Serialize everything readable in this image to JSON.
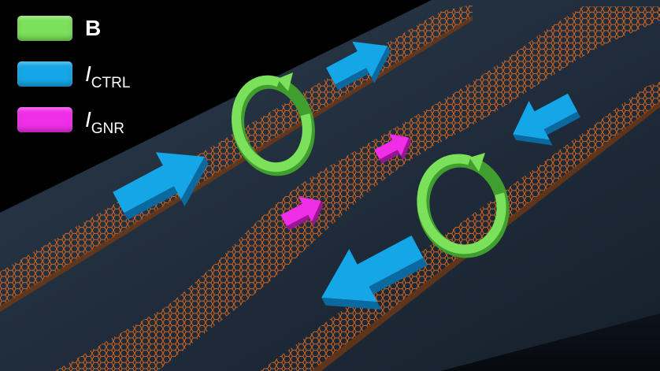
{
  "legend": {
    "items": [
      {
        "id": "b",
        "symbol": "B",
        "subscript": "",
        "color": "#7be05a"
      },
      {
        "id": "ictrl",
        "symbol": "I",
        "subscript": "CTRL",
        "color": "#14a6e6"
      },
      {
        "id": "ignr",
        "symbol": "I",
        "subscript": "GNR",
        "color": "#f02ee8"
      }
    ]
  },
  "colors": {
    "background": "#000000",
    "substrate": "#1e2a38",
    "nanoribbon": "#e06a1e",
    "field_arrow": "#7be05a",
    "control_current_arrow": "#14a6e6",
    "gnr_current_arrow": "#f02ee8"
  }
}
